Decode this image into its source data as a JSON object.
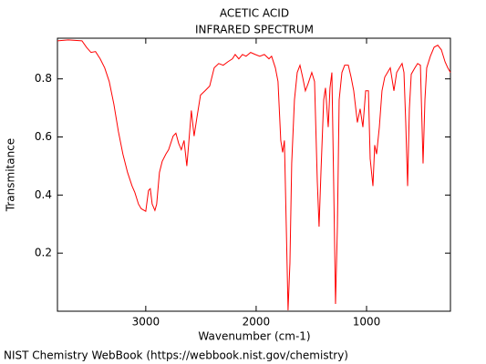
{
  "chart_data": {
    "type": "line",
    "title": "ACETIC ACID",
    "subtitle": "INFRARED SPECTRUM",
    "x_label": "Wavenumber (cm-1)",
    "y_label": "Transmitance",
    "footer": "NIST Chemistry WebBook (https://webbook.nist.gov/chemistry)",
    "color": "#ff0000",
    "xlim": [
      3800,
      240
    ],
    "ylim": [
      0,
      0.94
    ],
    "xticks": [
      3000,
      2000,
      1000
    ],
    "yticks": [
      0.2,
      0.4,
      0.6,
      0.8
    ],
    "x": [
      3800,
      3702,
      3578,
      3537,
      3496,
      3455,
      3413,
      3372,
      3331,
      3289,
      3248,
      3207,
      3165,
      3124,
      3099,
      3066,
      3041,
      3000,
      2975,
      2959,
      2942,
      2917,
      2901,
      2876,
      2851,
      2818,
      2793,
      2752,
      2727,
      2702,
      2678,
      2653,
      2628,
      2612,
      2587,
      2562,
      2537,
      2504,
      2463,
      2421,
      2380,
      2339,
      2298,
      2256,
      2215,
      2190,
      2157,
      2124,
      2091,
      2050,
      2008,
      1967,
      1926,
      1884,
      1860,
      1826,
      1802,
      1777,
      1760,
      1744,
      1727,
      1711,
      1694,
      1678,
      1653,
      1628,
      1603,
      1579,
      1554,
      1529,
      1496,
      1471,
      1446,
      1430,
      1413,
      1388,
      1372,
      1347,
      1331,
      1314,
      1298,
      1281,
      1264,
      1248,
      1223,
      1198,
      1165,
      1140,
      1116,
      1083,
      1058,
      1033,
      1008,
      983,
      967,
      942,
      926,
      909,
      884,
      860,
      835,
      810,
      785,
      752,
      727,
      702,
      678,
      661,
      645,
      628,
      612,
      595,
      562,
      537,
      512,
      488,
      471,
      455,
      422,
      388,
      355,
      322,
      289,
      264,
      240
    ],
    "values": [
      0.931,
      0.934,
      0.931,
      0.909,
      0.891,
      0.894,
      0.869,
      0.838,
      0.791,
      0.713,
      0.619,
      0.541,
      0.478,
      0.431,
      0.409,
      0.369,
      0.353,
      0.344,
      0.416,
      0.422,
      0.369,
      0.347,
      0.369,
      0.478,
      0.516,
      0.541,
      0.556,
      0.603,
      0.613,
      0.578,
      0.556,
      0.588,
      0.5,
      0.572,
      0.691,
      0.603,
      0.666,
      0.744,
      0.759,
      0.775,
      0.838,
      0.853,
      0.847,
      0.859,
      0.869,
      0.884,
      0.869,
      0.884,
      0.878,
      0.891,
      0.884,
      0.878,
      0.884,
      0.869,
      0.878,
      0.838,
      0.791,
      0.588,
      0.547,
      0.588,
      0.291,
      0.003,
      0.166,
      0.509,
      0.728,
      0.822,
      0.847,
      0.806,
      0.759,
      0.784,
      0.822,
      0.791,
      0.447,
      0.291,
      0.478,
      0.728,
      0.769,
      0.634,
      0.769,
      0.822,
      0.447,
      0.025,
      0.291,
      0.728,
      0.822,
      0.847,
      0.847,
      0.806,
      0.759,
      0.65,
      0.697,
      0.634,
      0.759,
      0.759,
      0.525,
      0.431,
      0.572,
      0.541,
      0.634,
      0.759,
      0.806,
      0.822,
      0.838,
      0.759,
      0.822,
      0.838,
      0.853,
      0.822,
      0.65,
      0.431,
      0.697,
      0.816,
      0.838,
      0.853,
      0.847,
      0.509,
      0.728,
      0.838,
      0.878,
      0.909,
      0.916,
      0.9,
      0.859,
      0.838,
      0.822
    ]
  }
}
